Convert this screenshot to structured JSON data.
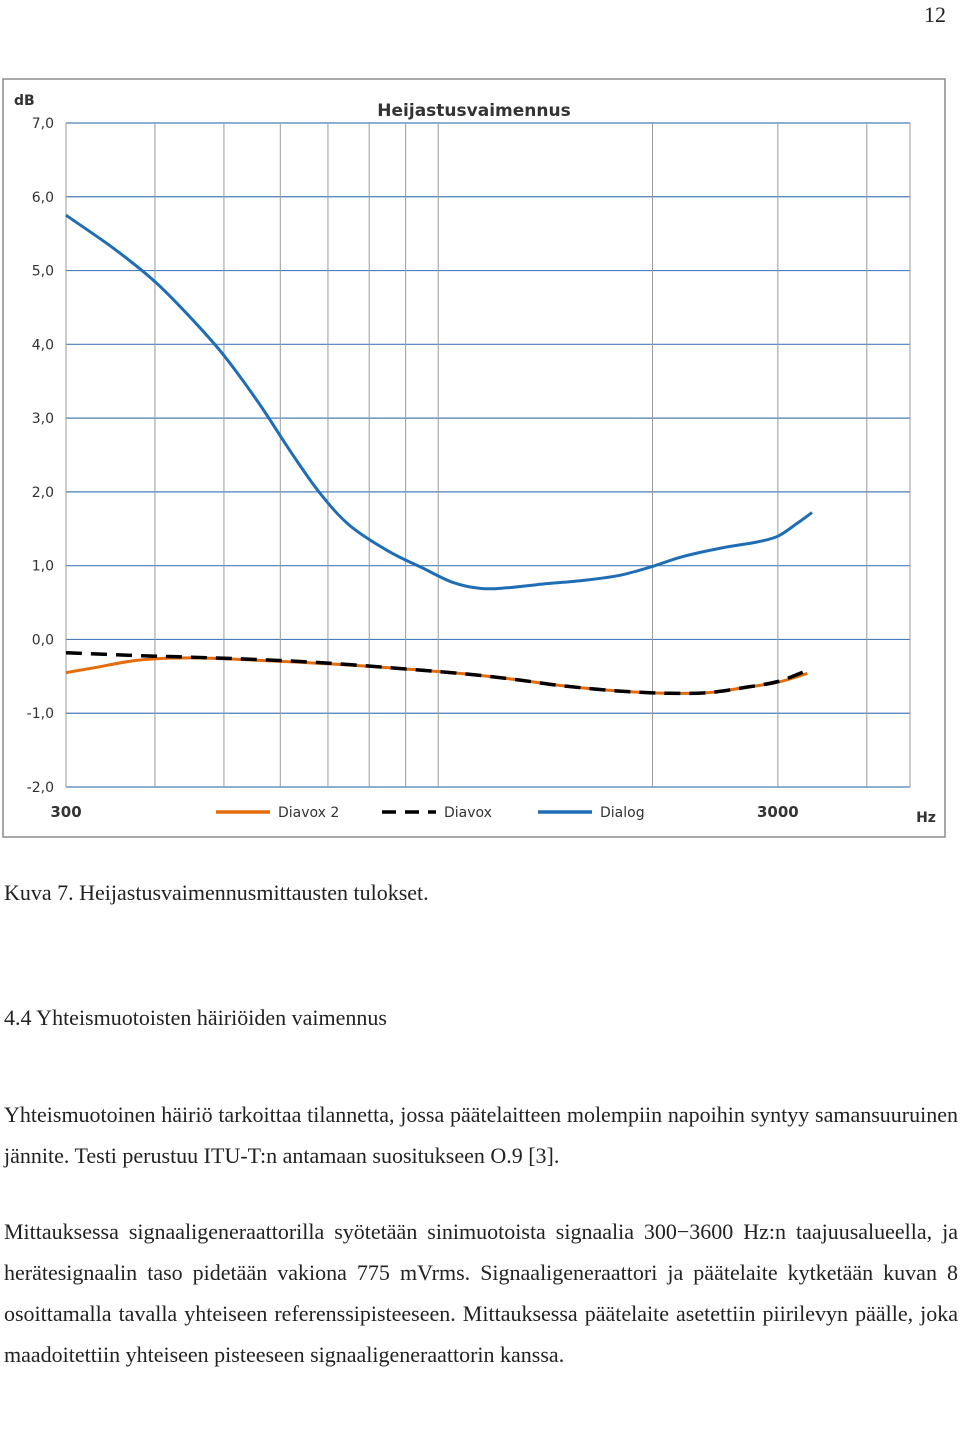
{
  "page": {
    "number": "12"
  },
  "figure": {
    "caption": "Kuva 7. Heijastusvaimennusmittausten tulokset."
  },
  "section": {
    "heading": "4.4  Yhteismuotoisten häiriöiden vaimennus"
  },
  "paragraphs": [
    "Yhteismuotoinen häiriö tarkoittaa tilannetta, jossa päätelaitteen molempiin napoihin syntyy samansuuruinen jännite. Testi perustuu ITU-T:n antamaan suositukseen O.9 [3].",
    "Mittauksessa signaaligeneraattorilla syötetään sinimuotoista signaalia 300−3600 Hz:n taajuusalueella, ja herätesignaalin taso pidetään vakiona 775 mVrms. Signaaligeneraattori ja päätelaite kytketään kuvan 8 osoittamalla tavalla yhteiseen referenssipisteeseen. Mittauksessa päätelaite asetettiin piirilevyn päälle, joka maadoitettiin yhteiseen pisteeseen signaaligeneraattorin kanssa."
  ],
  "chart_data": {
    "type": "line",
    "title": "Heijastusvaimennus",
    "ylabel": "dB",
    "xlabel": "Hz",
    "x_scale": "log",
    "xlim": [
      300,
      4600
    ],
    "ylim": [
      -2.0,
      7.0
    ],
    "y_ticks": [
      "7,0",
      "6,0",
      "5,0",
      "4,0",
      "3,0",
      "2,0",
      "1,0",
      "0,0",
      "-1,0",
      "-2,0"
    ],
    "y_tick_values": [
      7,
      6,
      5,
      4,
      3,
      2,
      1,
      0,
      -1,
      -2
    ],
    "x_ticks": [
      "300",
      "3000"
    ],
    "x_tick_values": [
      300,
      3000
    ],
    "grid": true,
    "legend_position": "bottom",
    "series": [
      {
        "name": "Diavox 2",
        "color": "#E46C0A",
        "style": "solid",
        "points": [
          [
            300,
            -0.45
          ],
          [
            330,
            -0.38
          ],
          [
            380,
            -0.28
          ],
          [
            450,
            -0.25
          ],
          [
            550,
            -0.28
          ],
          [
            700,
            -0.33
          ],
          [
            900,
            -0.4
          ],
          [
            1100,
            -0.47
          ],
          [
            1300,
            -0.55
          ],
          [
            1500,
            -0.63
          ],
          [
            1800,
            -0.7
          ],
          [
            2100,
            -0.73
          ],
          [
            2400,
            -0.72
          ],
          [
            2700,
            -0.65
          ],
          [
            3000,
            -0.58
          ],
          [
            3300,
            -0.46
          ]
        ]
      },
      {
        "name": "Diavox",
        "color": "#000000",
        "style": "dashed",
        "points": [
          [
            300,
            -0.18
          ],
          [
            380,
            -0.22
          ],
          [
            450,
            -0.24
          ],
          [
            550,
            -0.27
          ],
          [
            700,
            -0.32
          ],
          [
            900,
            -0.4
          ],
          [
            1100,
            -0.47
          ],
          [
            1300,
            -0.55
          ],
          [
            1500,
            -0.63
          ],
          [
            1800,
            -0.7
          ],
          [
            2100,
            -0.73
          ],
          [
            2400,
            -0.72
          ],
          [
            2700,
            -0.65
          ],
          [
            3000,
            -0.57
          ],
          [
            3300,
            -0.42
          ]
        ]
      },
      {
        "name": "Dialog",
        "color": "#1F6DB5",
        "style": "solid",
        "points": [
          [
            300,
            5.75
          ],
          [
            350,
            5.3
          ],
          [
            400,
            4.85
          ],
          [
            450,
            4.35
          ],
          [
            500,
            3.85
          ],
          [
            560,
            3.2
          ],
          [
            620,
            2.55
          ],
          [
            680,
            2.0
          ],
          [
            750,
            1.55
          ],
          [
            850,
            1.2
          ],
          [
            950,
            0.97
          ],
          [
            1050,
            0.77
          ],
          [
            1150,
            0.69
          ],
          [
            1250,
            0.7
          ],
          [
            1400,
            0.75
          ],
          [
            1600,
            0.8
          ],
          [
            1800,
            0.87
          ],
          [
            2000,
            0.99
          ],
          [
            2200,
            1.12
          ],
          [
            2500,
            1.24
          ],
          [
            2800,
            1.32
          ],
          [
            3000,
            1.4
          ],
          [
            3200,
            1.58
          ],
          [
            3350,
            1.72
          ]
        ]
      }
    ]
  }
}
